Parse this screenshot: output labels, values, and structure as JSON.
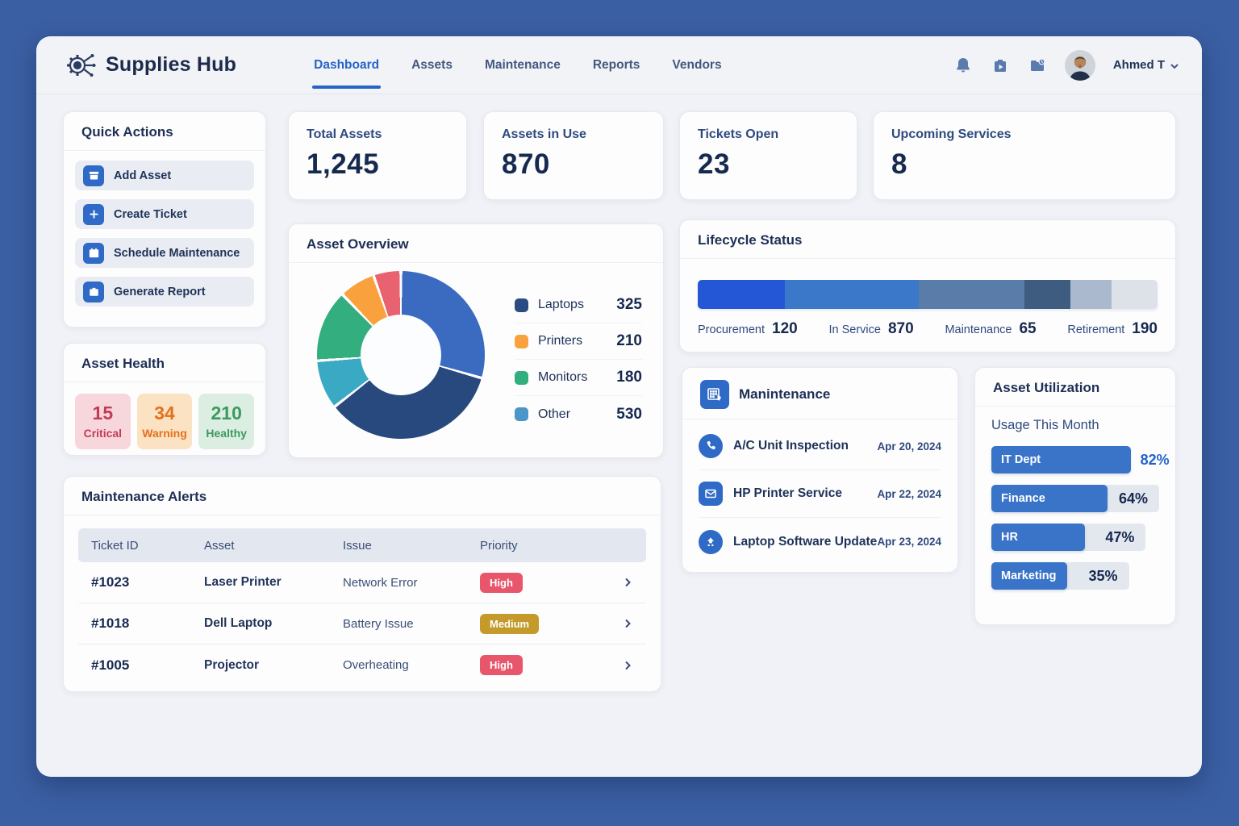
{
  "header": {
    "app_title": "Supplies Hub",
    "nav": [
      {
        "label": "Dashboard",
        "active": true
      },
      {
        "label": "Assets",
        "active": false
      },
      {
        "label": "Maintenance",
        "active": false
      },
      {
        "label": "Reports",
        "active": false
      },
      {
        "label": "Vendors",
        "active": false
      }
    ],
    "icons": [
      "bell-icon",
      "briefcase-play-icon",
      "folder-clock-icon"
    ],
    "user": {
      "name": "Ahmed T"
    }
  },
  "quick_actions": {
    "title": "Quick Actions",
    "items": [
      {
        "label": "Add Asset",
        "icon": "box-icon"
      },
      {
        "label": "Create Ticket",
        "icon": "plus-icon"
      },
      {
        "label": "Schedule Maintenance",
        "icon": "calendar-icon"
      },
      {
        "label": "Generate Report",
        "icon": "briefcase-icon"
      }
    ]
  },
  "asset_health": {
    "title": "Asset Health",
    "tiles": [
      {
        "value": "15",
        "label": "Critical",
        "status": "critical"
      },
      {
        "value": "34",
        "label": "Warning",
        "status": "warning"
      },
      {
        "value": "210",
        "label": "Healthy",
        "status": "healthy"
      }
    ]
  },
  "kpis": [
    {
      "label": "Total Assets",
      "value": "1,245"
    },
    {
      "label": "Assets in Use",
      "value": "870"
    },
    {
      "label": "Tickets Open",
      "value": "23"
    },
    {
      "label": "Upcoming Services",
      "value": "8"
    }
  ],
  "asset_overview": {
    "title": "Asset Overview",
    "legend": [
      {
        "label": "Laptops",
        "value": "325",
        "color": "#2B4C82"
      },
      {
        "label": "Printers",
        "value": "210",
        "color": "#F9A13D"
      },
      {
        "label": "Monitors",
        "value": "180",
        "color": "#33AE7E"
      },
      {
        "label": "Other",
        "value": "530",
        "color": "#4A96C8"
      }
    ]
  },
  "lifecycle": {
    "title": "Lifecycle Status",
    "stages": [
      {
        "label": "Procurement",
        "value": "120"
      },
      {
        "label": "In Service",
        "value": "870"
      },
      {
        "label": "Maintenance",
        "value": "65"
      },
      {
        "label": "Retirement",
        "value": "190"
      }
    ]
  },
  "maintenance": {
    "title": "Manintenance",
    "items": [
      {
        "icon": "phone-icon",
        "label": "A/C Unit Inspection",
        "date": "Apr 20, 2024"
      },
      {
        "icon": "mail-icon",
        "label": "HP Printer Service",
        "date": "Apr 22, 2024"
      },
      {
        "icon": "arrow-up-icon",
        "label": "Laptop Software Update",
        "date": "Apr 23, 2024"
      }
    ]
  },
  "utilization": {
    "title": "Asset Utilization",
    "subtitle": "Usage This Month",
    "bars": [
      {
        "label": "IT Dept",
        "pct": "82%"
      },
      {
        "label": "Finance",
        "pct": "64%"
      },
      {
        "label": "HR",
        "pct": "47%"
      },
      {
        "label": "Marketing",
        "pct": "35%"
      }
    ]
  },
  "alerts": {
    "title": "Maintenance Alerts",
    "columns": [
      "Ticket ID",
      "Asset",
      "Issue",
      "Priority"
    ],
    "rows": [
      {
        "id": "#1023",
        "asset": "Laser Printer",
        "issue": "Network Error",
        "priority": "High"
      },
      {
        "id": "#1018",
        "asset": "Dell Laptop",
        "issue": "Battery Issue",
        "priority": "Medium"
      },
      {
        "id": "#1005",
        "asset": "Projector",
        "issue": "Overheating",
        "priority": "High"
      }
    ]
  },
  "colors": {
    "accent_blue": "#2563C8",
    "icon_blue": "#2F6BC6",
    "background_blue": "#3B5FA3",
    "high_badge": "#E8566C",
    "medium_badge": "#C49A2A",
    "critical_text": "#C23B55",
    "critical_bg": "#F8D7DC",
    "warning_text": "#E2711D",
    "warning_bg": "#FBE2C2",
    "healthy_text": "#3C9960",
    "healthy_bg": "#DCEEE2"
  },
  "chart_data": [
    {
      "type": "pie",
      "title": "Asset Overview",
      "categories": [
        "Laptops",
        "Printers",
        "Monitors",
        "Other"
      ],
      "values": [
        325,
        210,
        180,
        530
      ],
      "legend_colors": [
        "#2B4C82",
        "#F9A13D",
        "#33AE7E",
        "#4A96C8"
      ],
      "legend_position": "right",
      "visual_segments": [
        {
          "color": "#3A6BC0",
          "deg": 106
        },
        {
          "color": "#28497E",
          "deg": 126
        },
        {
          "color": "#39A9C4",
          "deg": 34
        },
        {
          "color": "#33AE7E",
          "deg": 50
        },
        {
          "color": "#F9A13D",
          "deg": 25
        },
        {
          "color": "#E8626F",
          "deg": 19
        }
      ]
    },
    {
      "type": "bar",
      "subtype": "stacked-horizontal",
      "title": "Lifecycle Status",
      "categories": [
        "Procurement",
        "In Service",
        "Maintenance",
        "Retirement"
      ],
      "values": [
        120,
        870,
        65,
        190
      ],
      "visual_segments": [
        {
          "color": "#2457D6",
          "w": 19
        },
        {
          "color": "#3B78C9",
          "w": 29
        },
        {
          "color": "#5A7CA8",
          "w": 23
        },
        {
          "color": "#3E5C80",
          "w": 10
        },
        {
          "color": "#AAB9CE",
          "w": 9
        },
        {
          "color": "#DDE2E9",
          "w": 10
        }
      ]
    },
    {
      "type": "bar",
      "subtype": "horizontal",
      "title": "Asset Utilization - Usage This Month",
      "categories": [
        "IT Dept",
        "Finance",
        "HR",
        "Marketing"
      ],
      "values": [
        82,
        64,
        47,
        35
      ],
      "layout": {
        "fill_w": [
          83,
          69,
          56,
          45
        ],
        "track_w": [
          83,
          100,
          92,
          82
        ],
        "pct_style": [
          "outside-blue",
          "inside",
          "inside",
          "inside"
        ]
      }
    }
  ]
}
